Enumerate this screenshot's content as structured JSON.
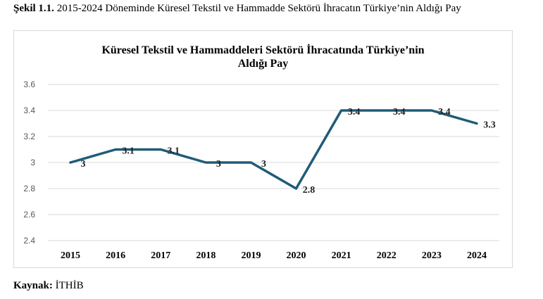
{
  "caption": {
    "label": "Şekil 1.1.",
    "text": "2015-2024 Döneminde Küresel Tekstil ve Hammadde Sektörü İhracatın Türkiye’nin Aldığı Pay"
  },
  "source": {
    "label": "Kaynak:",
    "text": "İTHİB"
  },
  "colors": {
    "line": "#1f5b78",
    "grid": "#d9d9d9",
    "axis_text": "#595959"
  },
  "chart_data": {
    "type": "line",
    "title": "Küresel Tekstil ve Hammaddeleri Sektörü İhracatında Türkiye’nin\nAldığı Pay",
    "xlabel": "",
    "ylabel": "",
    "categories": [
      "2015",
      "2016",
      "2017",
      "2018",
      "2019",
      "2020",
      "2021",
      "2022",
      "2023",
      "2024"
    ],
    "values": [
      3,
      3.1,
      3.1,
      3,
      3,
      2.8,
      3.4,
      3.4,
      3.4,
      3.3
    ],
    "data_labels": [
      "3",
      "3.1",
      "3.1",
      "3",
      "3",
      "2.8",
      "3.4",
      "3.4",
      "3.4",
      "3.3"
    ],
    "ylim": [
      2.4,
      3.6
    ],
    "yticks": [
      "2.4",
      "2.6",
      "2.8",
      "3",
      "3.2",
      "3.4",
      "3.6"
    ],
    "grid": true,
    "legend": "none"
  }
}
